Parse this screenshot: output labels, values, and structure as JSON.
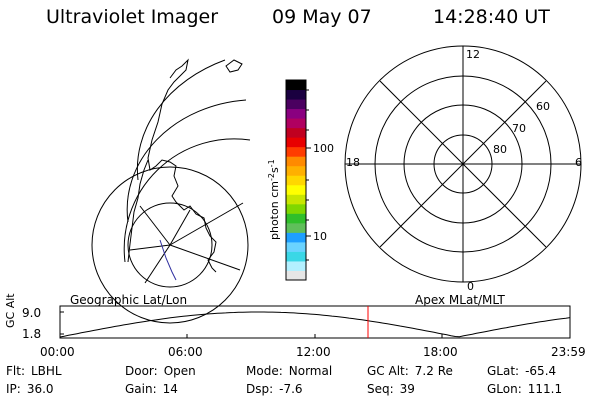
{
  "header": {
    "instrument": "Ultraviolet Imager",
    "date": "09 May 07",
    "time": "14:28:40 UT"
  },
  "colorbar": {
    "axis_label": "photon cm",
    "ticks": [
      "100",
      "10"
    ],
    "colors": [
      "#e6e6e6",
      "#b3f0ff",
      "#3ad7e6",
      "#6ad3ff",
      "#1e9fff",
      "#5fbf5a",
      "#2fbf2a",
      "#7fd700",
      "#c8e600",
      "#ffff00",
      "#ffd700",
      "#ffb000",
      "#ff8a00",
      "#ff3c00",
      "#e80000",
      "#c00020",
      "#b00060",
      "#8a0080",
      "#4a0060",
      "#1a0040",
      "#000000"
    ]
  },
  "geo_map": {
    "label": "Geographic Lat/Lon"
  },
  "polar_plot": {
    "label": "Apex MLat/MLT",
    "mlt_labels": [
      "12",
      "18",
      "6",
      "0"
    ],
    "mlat_labels": [
      "60",
      "70",
      "80"
    ]
  },
  "altitude_strip": {
    "ylabel": "GC Alt",
    "yticks": [
      "9.0",
      "1.8"
    ],
    "xticks": [
      "00:00",
      "06:00",
      "12:00",
      "18:00",
      "23:59"
    ],
    "current_time_fraction": 0.604,
    "line_color": "#ff0000"
  },
  "info": {
    "filter": {
      "label": "Flt:",
      "value": "LBHL"
    },
    "door": {
      "label": "Door:",
      "value": "Open"
    },
    "mode": {
      "label": "Mode:",
      "value": "Normal"
    },
    "gc_alt": {
      "label": "GC Alt:",
      "value": "7.2 Re"
    },
    "glat": {
      "label": "GLat:",
      "value": "-65.4"
    },
    "ip": {
      "label": "IP:",
      "value": "36.0"
    },
    "gain": {
      "label": "Gain:",
      "value": "14"
    },
    "dsp": {
      "label": "Dsp:",
      "value": "-7.6"
    },
    "seq": {
      "label": "Seq:",
      "value": "39"
    },
    "glon": {
      "label": "GLon:",
      "value": "111.1"
    }
  }
}
